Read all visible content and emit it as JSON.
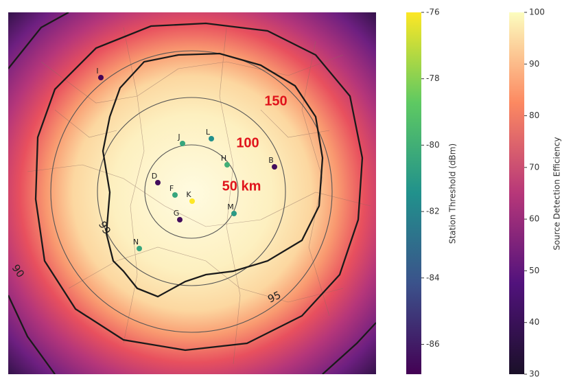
{
  "map": {
    "range_labels": [
      "150",
      "100",
      "50 km"
    ],
    "contour_labels": [
      "99",
      "95",
      "90"
    ],
    "stations": [
      {
        "label": "I",
        "threshold": -86.8
      },
      {
        "label": "L",
        "threshold": -81.5
      },
      {
        "label": "J",
        "threshold": -80.5
      },
      {
        "label": "H",
        "threshold": -80
      },
      {
        "label": "B",
        "threshold": -86.5
      },
      {
        "label": "D",
        "threshold": -86.5
      },
      {
        "label": "F",
        "threshold": -80.5
      },
      {
        "label": "K",
        "threshold": -76
      },
      {
        "label": "G",
        "threshold": -86.5
      },
      {
        "label": "M",
        "threshold": -81
      },
      {
        "label": "N",
        "threshold": -80.5
      }
    ]
  },
  "threshold_colorbar": {
    "label": "Station Threshold (dBm)",
    "ylim": [
      -86.9,
      -76
    ],
    "yticks": [
      -86,
      -84,
      -82,
      -80,
      -78,
      -76
    ]
  },
  "efficiency_colorbar": {
    "label": "Source Detection Efficiency",
    "ylim": [
      30,
      100
    ],
    "yticks": [
      30,
      40,
      50,
      60,
      70,
      80,
      90,
      100
    ]
  }
}
